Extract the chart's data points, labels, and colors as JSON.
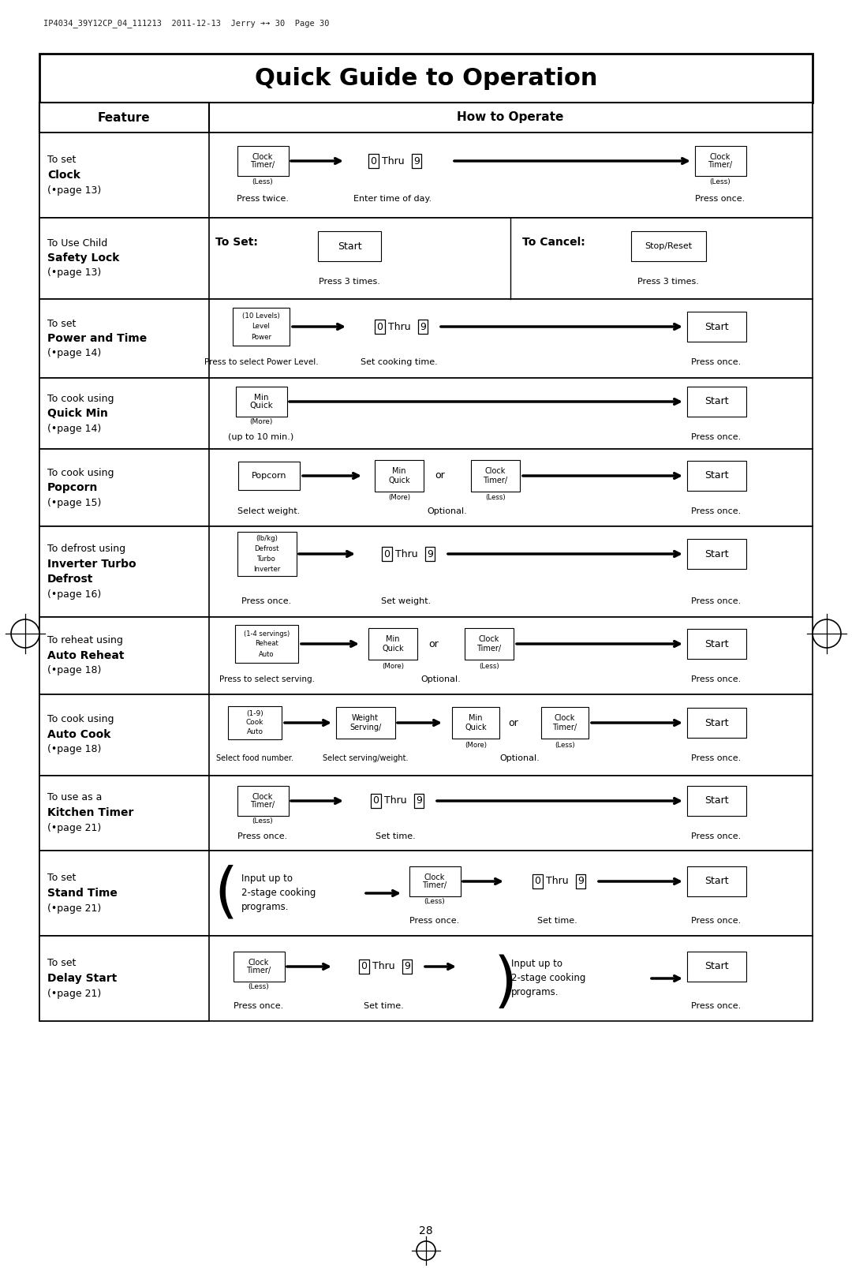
{
  "title": "Quick Guide to Operation",
  "page_number": "28",
  "bg_color": "#ffffff",
  "rows": [
    {
      "feature": [
        "To set",
        "Clock",
        "(•page 13)"
      ],
      "bold": [
        false,
        true,
        false
      ]
    },
    {
      "feature": [
        "To Use Child",
        "Safety Lock",
        "(•page 13)"
      ],
      "bold": [
        false,
        true,
        false
      ]
    },
    {
      "feature": [
        "To set",
        "Power and Time",
        "(•page 14)"
      ],
      "bold": [
        false,
        true,
        false
      ]
    },
    {
      "feature": [
        "To cook using",
        "Quick Min",
        "(•page 14)"
      ],
      "bold": [
        false,
        true,
        false
      ]
    },
    {
      "feature": [
        "To cook using",
        "Popcorn",
        "(•page 15)"
      ],
      "bold": [
        false,
        true,
        false
      ]
    },
    {
      "feature": [
        "To defrost using",
        "Inverter Turbo",
        "Defrost",
        "(•page 16)"
      ],
      "bold": [
        false,
        true,
        true,
        false
      ]
    },
    {
      "feature": [
        "To reheat using",
        "Auto Reheat",
        "(•page 18)"
      ],
      "bold": [
        false,
        true,
        false
      ]
    },
    {
      "feature": [
        "To cook using",
        "Auto Cook",
        "(•page 18)"
      ],
      "bold": [
        false,
        true,
        false
      ]
    },
    {
      "feature": [
        "To use as a",
        "Kitchen Timer",
        "(•page 21)"
      ],
      "bold": [
        false,
        true,
        false
      ]
    },
    {
      "feature": [
        "To set",
        "Stand Time",
        "(•page 21)"
      ],
      "bold": [
        false,
        true,
        false
      ]
    },
    {
      "feature": [
        "To set",
        "Delay Start",
        "(•page 21)"
      ],
      "bold": [
        false,
        true,
        false
      ]
    }
  ]
}
